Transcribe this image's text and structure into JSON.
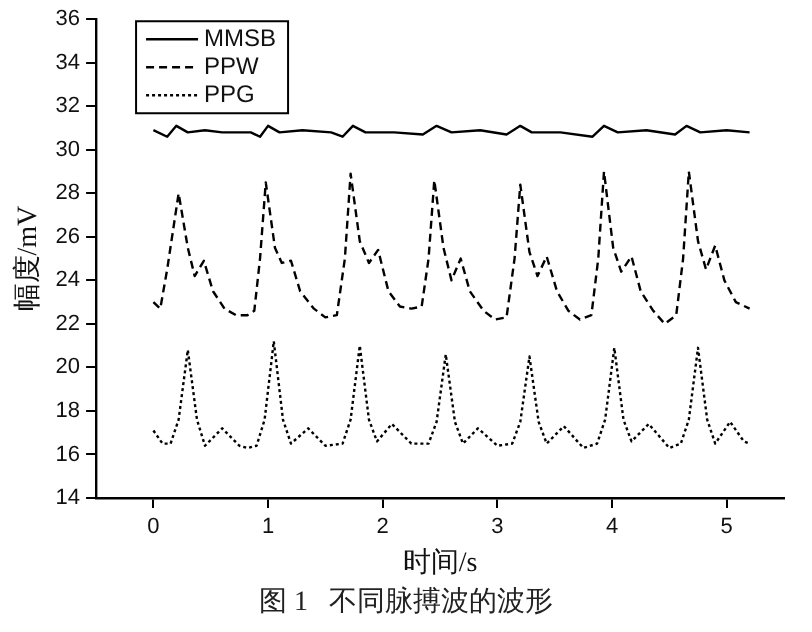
{
  "chart_data": {
    "type": "line",
    "xlabel": "时间/s",
    "ylabel": "幅度/mV",
    "annotations": [
      "图 1   不同脉搏波的波形"
    ],
    "xlim": [
      -0.5,
      5.5
    ],
    "xticks": [
      0,
      1,
      2,
      3,
      4,
      5
    ],
    "ylim": [
      14,
      36
    ],
    "yticks": [
      14,
      16,
      18,
      20,
      22,
      24,
      26,
      28,
      30,
      32,
      34,
      36
    ],
    "grid": false,
    "legend": "top left",
    "marker": "none",
    "series": [
      {
        "name": "MMSB",
        "color": "#000000",
        "line_style": "solid",
        "x": [
          0,
          0.12,
          0.2,
          0.3,
          0.45,
          0.6,
          0.85,
          0.93,
          1.0,
          1.1,
          1.3,
          1.55,
          1.65,
          1.74,
          1.85,
          2.1,
          2.35,
          2.47,
          2.6,
          2.85,
          3.08,
          3.2,
          3.3,
          3.55,
          3.83,
          3.93,
          4.05,
          4.3,
          4.55,
          4.65,
          4.77,
          5.0,
          5.2
        ],
        "values": [
          30.9,
          30.6,
          31.1,
          30.8,
          30.9,
          30.8,
          30.8,
          30.6,
          31.1,
          30.8,
          30.9,
          30.8,
          30.6,
          31.1,
          30.8,
          30.8,
          30.7,
          31.1,
          30.8,
          30.9,
          30.7,
          31.1,
          30.8,
          30.8,
          30.6,
          31.1,
          30.8,
          30.9,
          30.7,
          31.1,
          30.8,
          30.9,
          30.8
        ]
      },
      {
        "name": "PPW",
        "color": "#000000",
        "line_style": "dashed",
        "x": [
          0,
          0.06,
          0.12,
          0.22,
          0.3,
          0.36,
          0.44,
          0.52,
          0.62,
          0.72,
          0.82,
          0.88,
          0.93,
          0.98,
          1.06,
          1.12,
          1.2,
          1.28,
          1.4,
          1.5,
          1.6,
          1.67,
          1.72,
          1.8,
          1.88,
          1.96,
          2.05,
          2.15,
          2.25,
          2.34,
          2.4,
          2.45,
          2.53,
          2.6,
          2.68,
          2.76,
          2.88,
          2.98,
          3.08,
          3.15,
          3.2,
          3.28,
          3.35,
          3.43,
          3.52,
          3.62,
          3.72,
          3.82,
          3.88,
          3.93,
          4.01,
          4.08,
          4.17,
          4.25,
          4.36,
          4.46,
          4.56,
          4.62,
          4.67,
          4.75,
          4.82,
          4.9,
          4.98,
          5.08,
          5.2
        ],
        "values": [
          23.0,
          22.7,
          24.5,
          28.0,
          25.5,
          24.2,
          24.9,
          23.5,
          22.7,
          22.4,
          22.4,
          22.6,
          25,
          28.5,
          25.5,
          24.8,
          24.9,
          23.5,
          22.7,
          22.3,
          22.4,
          25,
          28.9,
          25.8,
          24.8,
          25.4,
          23.5,
          22.8,
          22.7,
          22.8,
          25,
          28.6,
          25.5,
          24.0,
          25.0,
          23.5,
          22.6,
          22.2,
          22.3,
          25,
          28.4,
          25.3,
          24.2,
          25.1,
          23.5,
          22.6,
          22.2,
          22.4,
          25,
          29.0,
          25.5,
          24.4,
          25.1,
          23.5,
          22.6,
          22.0,
          22.4,
          25,
          29.0,
          25.8,
          24.5,
          25.6,
          24.0,
          23.0,
          22.7
        ]
      },
      {
        "name": "PPG",
        "color": "#000000",
        "line_style": "dotted",
        "x": [
          0,
          0.08,
          0.15,
          0.22,
          0.3,
          0.38,
          0.45,
          0.6,
          0.75,
          0.82,
          0.9,
          0.97,
          1.05,
          1.13,
          1.2,
          1.35,
          1.5,
          1.65,
          1.72,
          1.8,
          1.88,
          1.95,
          2.08,
          2.25,
          2.4,
          2.47,
          2.55,
          2.63,
          2.7,
          2.83,
          3.0,
          3.13,
          3.2,
          3.28,
          3.36,
          3.43,
          3.58,
          3.75,
          3.87,
          3.94,
          4.02,
          4.1,
          4.17,
          4.32,
          4.5,
          4.6,
          4.67,
          4.75,
          4.83,
          4.9,
          5.03,
          5.15,
          5.2
        ],
        "values": [
          17.1,
          16.5,
          16.5,
          17.6,
          20.8,
          17.6,
          16.4,
          17.2,
          16.4,
          16.3,
          16.4,
          17.6,
          21.2,
          17.6,
          16.5,
          17.2,
          16.4,
          16.5,
          17.6,
          21.0,
          17.6,
          16.6,
          17.4,
          16.5,
          16.5,
          17.5,
          20.6,
          17.5,
          16.5,
          17.2,
          16.4,
          16.5,
          17.5,
          20.5,
          17.5,
          16.5,
          17.3,
          16.3,
          16.5,
          17.6,
          20.9,
          17.6,
          16.6,
          17.4,
          16.3,
          16.5,
          17.6,
          20.9,
          17.6,
          16.5,
          17.5,
          16.6,
          16.5
        ]
      }
    ]
  }
}
